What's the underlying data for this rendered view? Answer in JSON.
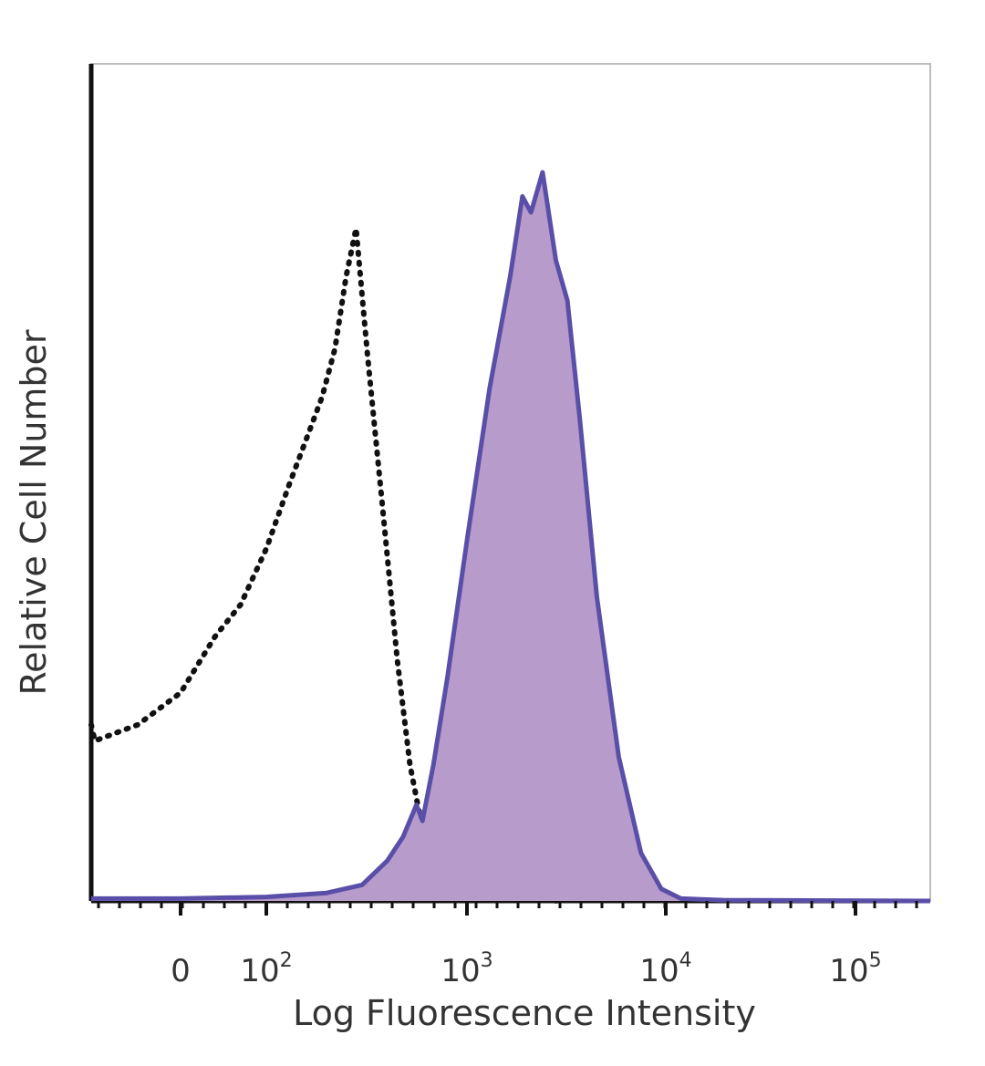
{
  "chart_data": {
    "type": "area",
    "xlabel": "Log Fluorescence Intensity",
    "ylabel": "Relative Cell Number",
    "x_scale": "biexponential",
    "x_ticks": [
      {
        "value": 0,
        "base": "0",
        "exp": ""
      },
      {
        "value": 100,
        "base": "10",
        "exp": "2"
      },
      {
        "value": 1000,
        "base": "10",
        "exp": "3"
      },
      {
        "value": 10000,
        "base": "10",
        "exp": "4"
      },
      {
        "value": 100000,
        "base": "10",
        "exp": "5"
      }
    ],
    "xlim": [
      -150,
      250000
    ],
    "ylim": [
      0,
      100
    ],
    "series": [
      {
        "style": "dotted-black",
        "points": [
          [
            -150,
            22
          ],
          [
            -100,
            20
          ],
          [
            -50,
            22
          ],
          [
            0,
            26
          ],
          [
            40,
            33
          ],
          [
            70,
            37
          ],
          [
            100,
            44
          ],
          [
            130,
            52
          ],
          [
            160,
            58
          ],
          [
            190,
            63
          ],
          [
            220,
            69
          ],
          [
            250,
            78
          ],
          [
            280,
            84
          ],
          [
            320,
            68
          ],
          [
            380,
            49
          ],
          [
            450,
            30
          ],
          [
            520,
            17
          ],
          [
            600,
            9
          ],
          [
            700,
            4
          ],
          [
            850,
            1.5
          ],
          [
            1100,
            0.6
          ],
          [
            1500,
            0.2
          ],
          [
            3000,
            0
          ]
        ]
      },
      {
        "style": "filled-purple",
        "color": "#5a4fa8",
        "fill": "#b79ccb",
        "points": [
          [
            -150,
            0.3
          ],
          [
            0,
            0.3
          ],
          [
            100,
            0.5
          ],
          [
            200,
            1
          ],
          [
            300,
            2
          ],
          [
            400,
            5
          ],
          [
            480,
            8
          ],
          [
            560,
            12
          ],
          [
            600,
            10
          ],
          [
            680,
            17
          ],
          [
            800,
            28
          ],
          [
            1000,
            45
          ],
          [
            1300,
            64
          ],
          [
            1650,
            78
          ],
          [
            1900,
            88
          ],
          [
            2100,
            86
          ],
          [
            2400,
            91
          ],
          [
            2800,
            80
          ],
          [
            3200,
            75
          ],
          [
            3700,
            60
          ],
          [
            4500,
            38
          ],
          [
            5800,
            18
          ],
          [
            7500,
            6
          ],
          [
            9500,
            1.5
          ],
          [
            12000,
            0.3
          ],
          [
            20000,
            0.1
          ],
          [
            250000,
            0
          ]
        ]
      }
    ]
  }
}
